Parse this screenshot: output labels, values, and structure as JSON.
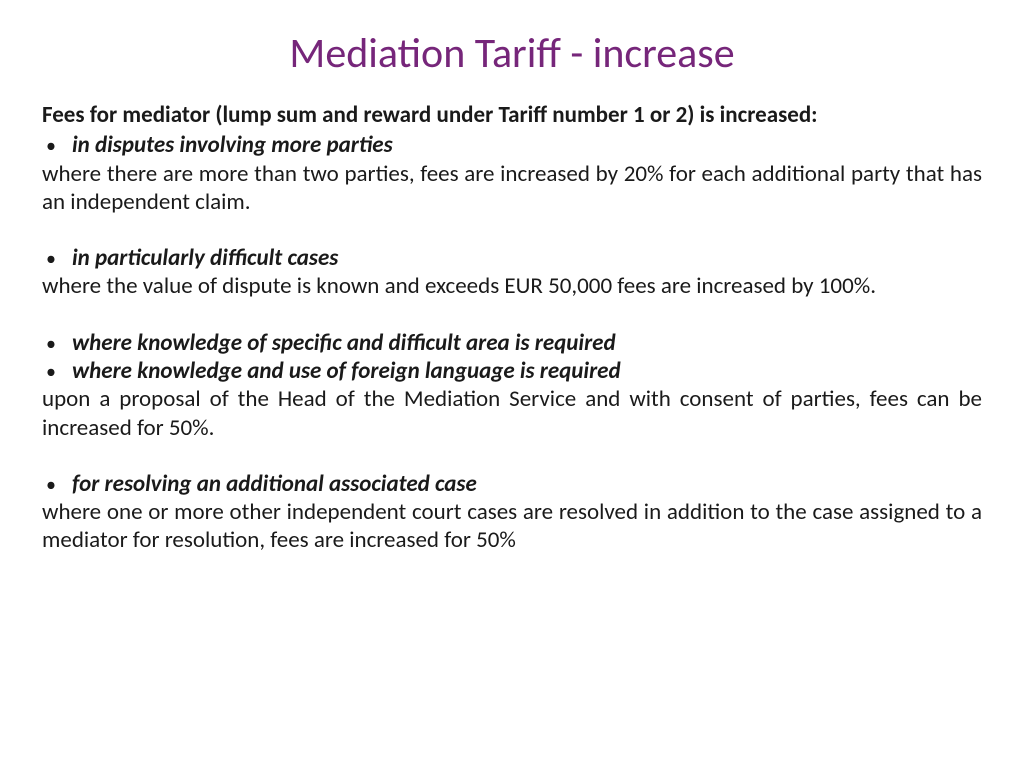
{
  "title": "Mediation Tariff - increase",
  "title_color": "#76267a",
  "title_fontsize": 42,
  "body_fontsize": 23,
  "body_lineheight": 1.23,
  "text_color": "#1a1a1a",
  "bullet_color": "#1a1a1a",
  "intro": "Fees for mediator (lump sum and reward under Tariff number 1 or 2) is increased:",
  "sections": [
    {
      "bullets": [
        "in disputes involving more parties"
      ],
      "desc": "where there are more than two parties, fees are increased by 20% for each additional party that has an independent claim."
    },
    {
      "bullets": [
        "in particularly difficult cases"
      ],
      "desc": "where the value of dispute is known and exceeds EUR 50,000 fees are increased by 100%."
    },
    {
      "bullets": [
        "where knowledge of specific and difficult area is required",
        "where knowledge and use of foreign language is required"
      ],
      "desc": "upon a proposal of the Head of the Mediation Service and with consent of parties, fees can be increased for 50%."
    },
    {
      "bullets": [
        "for resolving an additional associated case"
      ],
      "desc": "where one or more other independent court cases are resolved in addition to the case assigned to a mediator for resolution, fees are increased for 50%"
    }
  ]
}
